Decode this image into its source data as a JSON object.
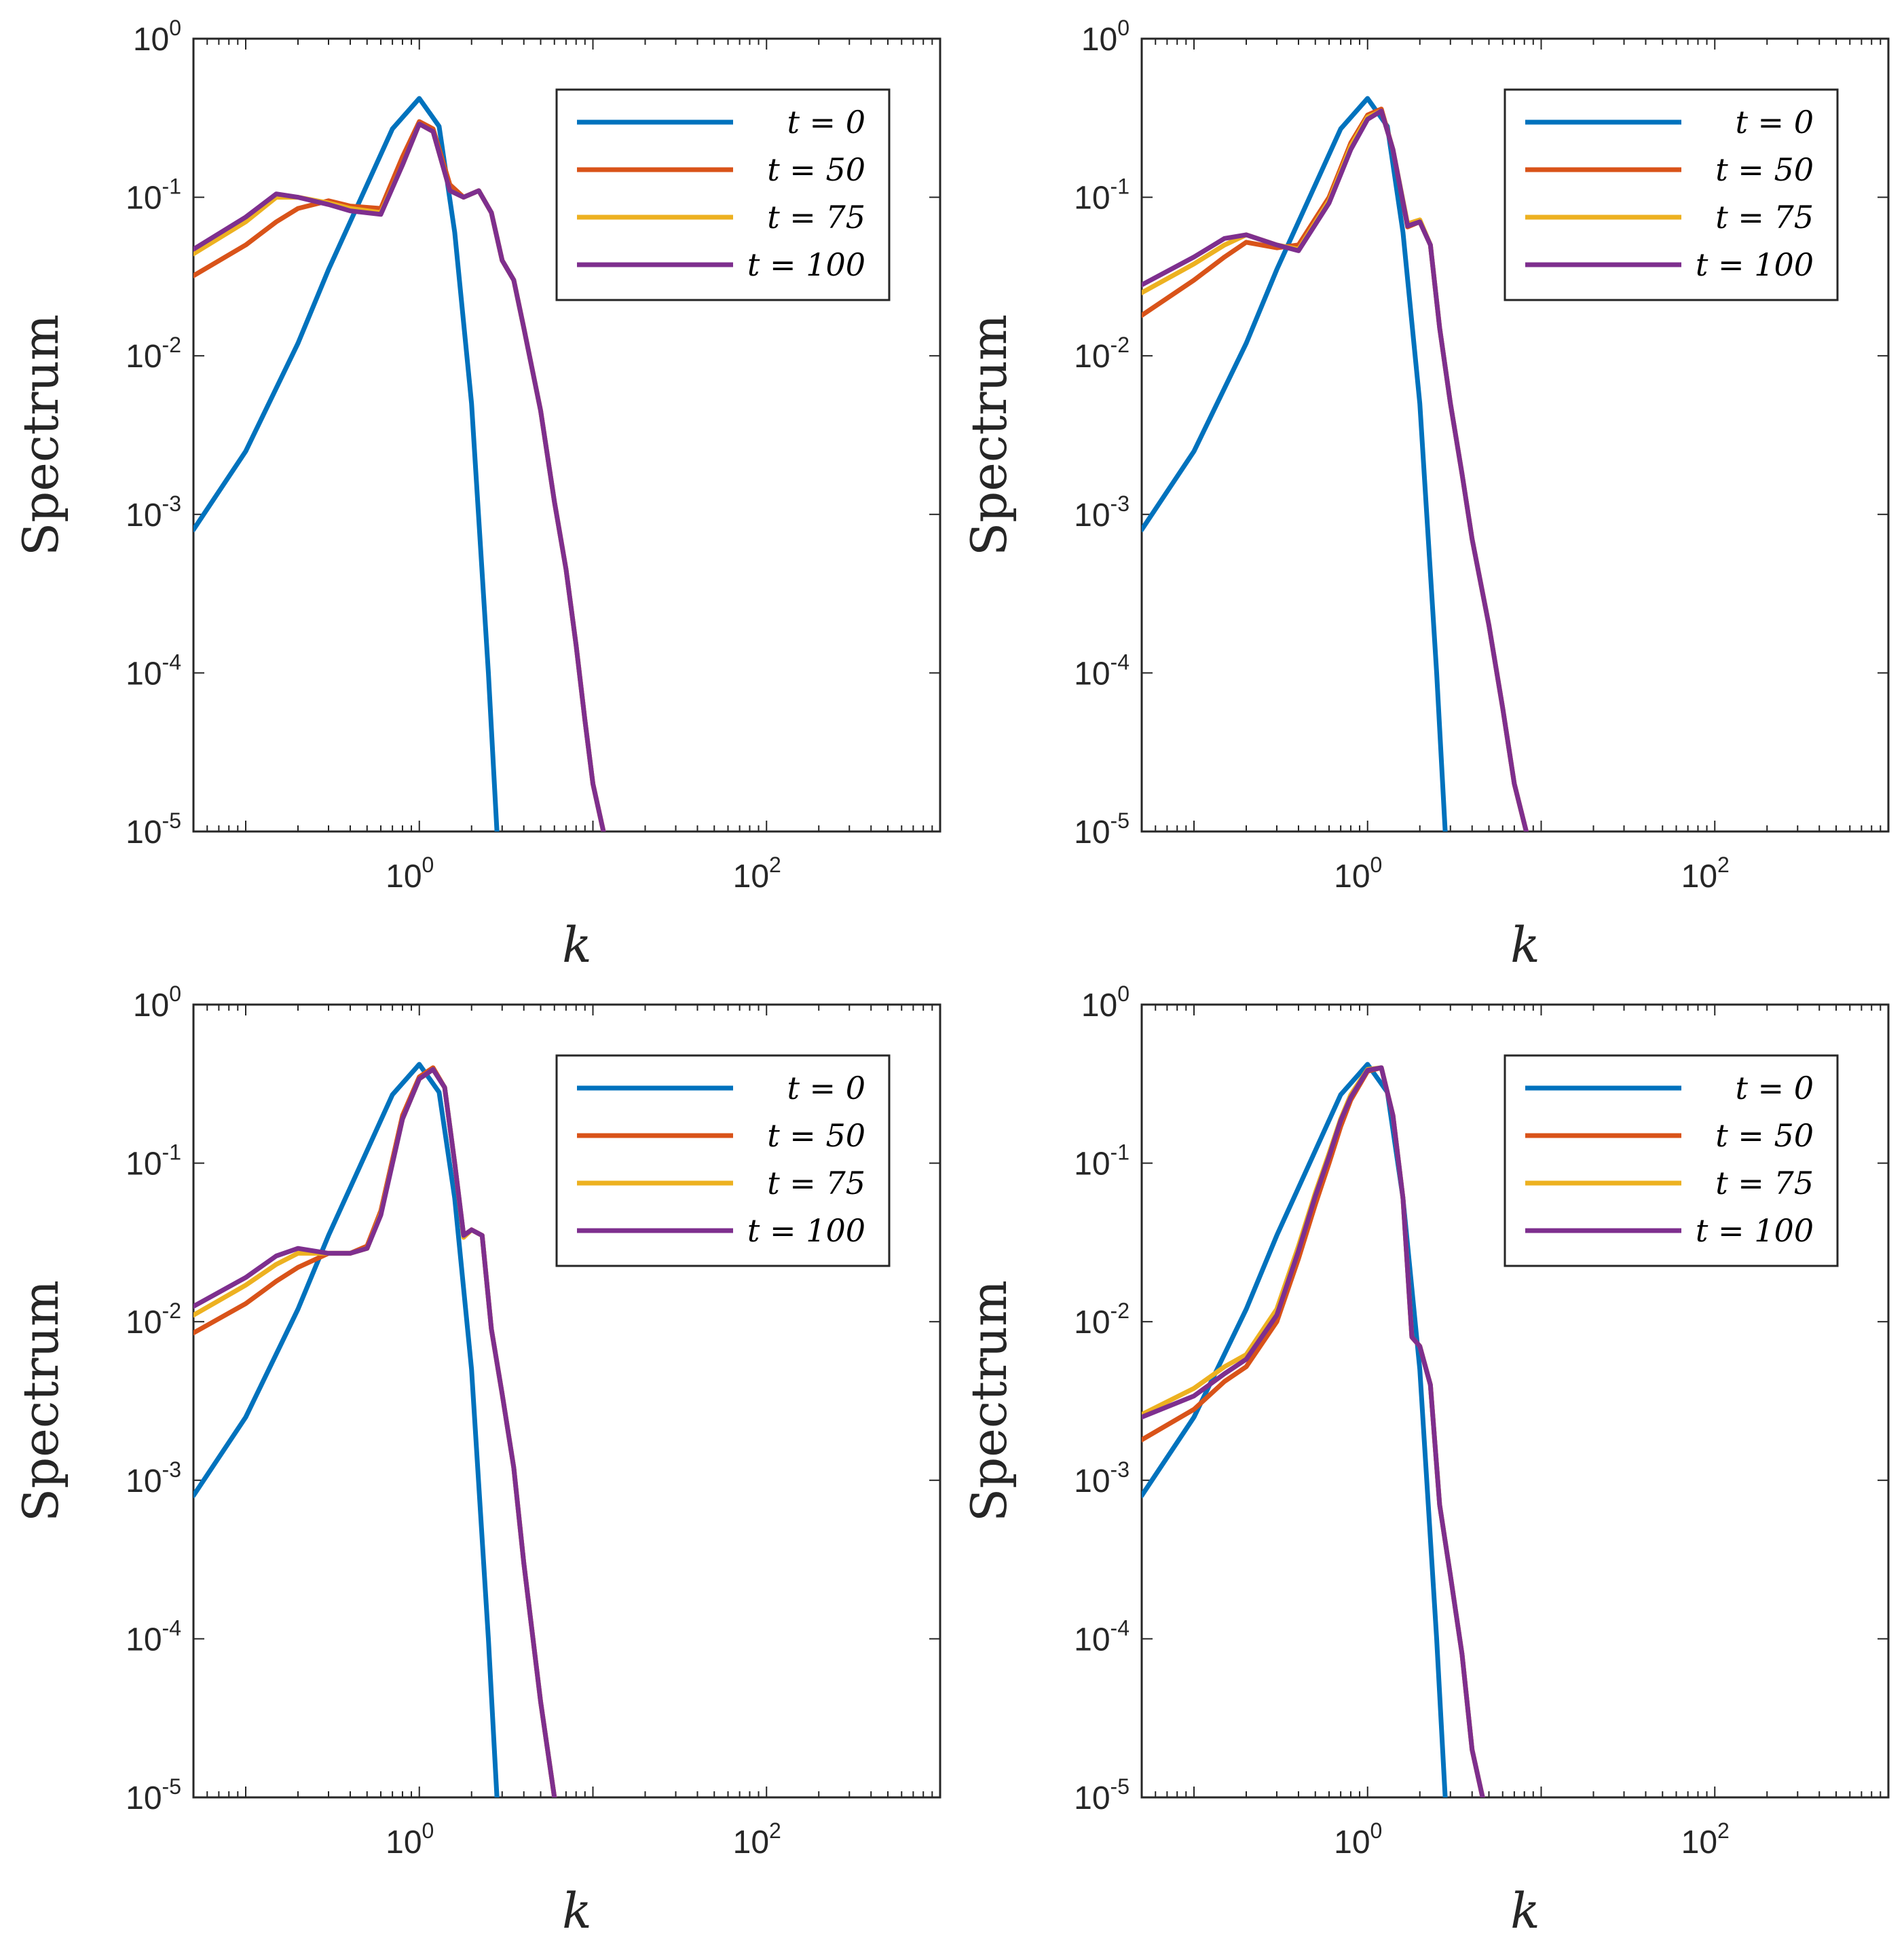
{
  "figure": {
    "title": ""
  },
  "colors": {
    "t0": "#0072BD",
    "t50": "#D95319",
    "t75": "#EDB120",
    "t100": "#7E2F8E",
    "axis": "#262626"
  },
  "chart_data": [
    {
      "type": "line",
      "panel": "top-left",
      "xscale": "log",
      "yscale": "log",
      "xlim": [
        0.05,
        1000
      ],
      "ylim": [
        1e-05,
        1
      ],
      "xticklabels": [
        {
          "base": "10",
          "exp": "0"
        },
        {
          "base": "10",
          "exp": "2"
        }
      ],
      "yticklabels": [
        {
          "base": "10",
          "exp": "0"
        },
        {
          "base": "10",
          "exp": "-1"
        },
        {
          "base": "10",
          "exp": "-2"
        },
        {
          "base": "10",
          "exp": "-3"
        },
        {
          "base": "10",
          "exp": "-4"
        },
        {
          "base": "10",
          "exp": "-5"
        }
      ],
      "xlabel": "k",
      "ylabel": "Spectrum",
      "legend_position": "top-right",
      "series": [
        {
          "name": "t = 0",
          "label": "t = 0",
          "color_key": "t0",
          "x": [
            0.05,
            0.1,
            0.2,
            0.3,
            0.5,
            0.7,
            1.0,
            1.3,
            1.6,
            2.0,
            2.5,
            2.8
          ],
          "y": [
            0.0008,
            0.0025,
            0.012,
            0.035,
            0.12,
            0.27,
            0.42,
            0.28,
            0.06,
            0.005,
            0.0001,
            1e-05
          ]
        },
        {
          "name": "t = 50",
          "label": "t = 50",
          "color_key": "t50",
          "x": [
            0.05,
            0.1,
            0.15,
            0.2,
            0.3,
            0.4,
            0.6,
            0.8,
            1.0,
            1.2,
            1.5,
            1.8,
            2.2,
            2.6,
            3.0,
            3.5,
            4.0,
            5.0,
            6.0,
            7.0,
            8.0,
            9.0,
            10.0,
            11.5
          ],
          "y": [
            0.032,
            0.05,
            0.07,
            0.085,
            0.095,
            0.088,
            0.085,
            0.18,
            0.3,
            0.27,
            0.12,
            0.1,
            0.11,
            0.08,
            0.04,
            0.03,
            0.015,
            0.0045,
            0.0012,
            0.00045,
            0.00015,
            5e-05,
            2e-05,
            1e-05
          ]
        },
        {
          "name": "t = 75",
          "label": "t = 75",
          "color_key": "t75",
          "x": [
            0.05,
            0.1,
            0.15,
            0.2,
            0.3,
            0.4,
            0.6,
            0.8,
            1.0,
            1.2,
            1.5,
            1.8,
            2.2,
            2.6,
            3.0,
            3.5,
            4.0,
            5.0,
            6.0,
            7.0,
            8.0,
            9.0,
            10.0,
            11.5
          ],
          "y": [
            0.044,
            0.07,
            0.1,
            0.1,
            0.092,
            0.085,
            0.08,
            0.16,
            0.29,
            0.26,
            0.11,
            0.1,
            0.11,
            0.08,
            0.04,
            0.03,
            0.015,
            0.0045,
            0.0012,
            0.00045,
            0.00015,
            5e-05,
            2e-05,
            1e-05
          ]
        },
        {
          "name": "t = 100",
          "label": "t = 100",
          "color_key": "t100",
          "x": [
            0.05,
            0.1,
            0.15,
            0.2,
            0.3,
            0.4,
            0.6,
            0.8,
            1.0,
            1.2,
            1.5,
            1.8,
            2.2,
            2.6,
            3.0,
            3.5,
            4.0,
            5.0,
            6.0,
            7.0,
            8.0,
            9.0,
            10.0,
            11.5
          ],
          "y": [
            0.047,
            0.075,
            0.105,
            0.1,
            0.09,
            0.082,
            0.078,
            0.16,
            0.29,
            0.26,
            0.11,
            0.1,
            0.11,
            0.08,
            0.04,
            0.03,
            0.015,
            0.0045,
            0.0012,
            0.00045,
            0.00015,
            5e-05,
            2e-05,
            1e-05
          ]
        }
      ]
    },
    {
      "type": "line",
      "panel": "top-right",
      "xscale": "log",
      "yscale": "log",
      "xlim": [
        0.05,
        1000
      ],
      "ylim": [
        1e-05,
        1
      ],
      "xticklabels": [
        {
          "base": "10",
          "exp": "0"
        },
        {
          "base": "10",
          "exp": "2"
        }
      ],
      "yticklabels": [
        {
          "base": "10",
          "exp": "0"
        },
        {
          "base": "10",
          "exp": "-1"
        },
        {
          "base": "10",
          "exp": "-2"
        },
        {
          "base": "10",
          "exp": "-3"
        },
        {
          "base": "10",
          "exp": "-4"
        },
        {
          "base": "10",
          "exp": "-5"
        }
      ],
      "xlabel": "k",
      "ylabel": "Spectrum",
      "legend_position": "top-right",
      "series": [
        {
          "name": "t = 0",
          "label": "t = 0",
          "color_key": "t0",
          "x": [
            0.05,
            0.1,
            0.2,
            0.3,
            0.5,
            0.7,
            1.0,
            1.3,
            1.6,
            2.0,
            2.5,
            2.8
          ],
          "y": [
            0.0008,
            0.0025,
            0.012,
            0.035,
            0.12,
            0.27,
            0.42,
            0.28,
            0.06,
            0.005,
            0.0001,
            1e-05
          ]
        },
        {
          "name": "t = 50",
          "label": "t = 50",
          "color_key": "t50",
          "x": [
            0.05,
            0.1,
            0.15,
            0.2,
            0.3,
            0.4,
            0.6,
            0.8,
            1.0,
            1.2,
            1.4,
            1.7,
            2.0,
            2.3,
            2.6,
            3.0,
            3.5,
            4.0,
            5.0,
            6.0,
            7.0,
            8.2
          ],
          "y": [
            0.018,
            0.03,
            0.042,
            0.052,
            0.048,
            0.05,
            0.1,
            0.22,
            0.33,
            0.36,
            0.2,
            0.065,
            0.07,
            0.05,
            0.015,
            0.005,
            0.0018,
            0.0007,
            0.0002,
            6e-05,
            2e-05,
            1e-05
          ]
        },
        {
          "name": "t = 75",
          "label": "t = 75",
          "color_key": "t75",
          "x": [
            0.05,
            0.1,
            0.15,
            0.2,
            0.3,
            0.4,
            0.6,
            0.8,
            1.0,
            1.2,
            1.4,
            1.7,
            2.0,
            2.3,
            2.6,
            3.0,
            3.5,
            4.0,
            5.0,
            6.0,
            7.0,
            8.2
          ],
          "y": [
            0.025,
            0.038,
            0.05,
            0.058,
            0.05,
            0.047,
            0.095,
            0.21,
            0.32,
            0.35,
            0.2,
            0.068,
            0.072,
            0.05,
            0.015,
            0.005,
            0.0018,
            0.0007,
            0.0002,
            6e-05,
            2e-05,
            1e-05
          ]
        },
        {
          "name": "t = 100",
          "label": "t = 100",
          "color_key": "t100",
          "x": [
            0.05,
            0.1,
            0.15,
            0.2,
            0.3,
            0.4,
            0.6,
            0.8,
            1.0,
            1.2,
            1.4,
            1.7,
            2.0,
            2.3,
            2.6,
            3.0,
            3.5,
            4.0,
            5.0,
            6.0,
            7.0,
            8.2
          ],
          "y": [
            0.028,
            0.042,
            0.055,
            0.058,
            0.05,
            0.046,
            0.092,
            0.2,
            0.31,
            0.35,
            0.2,
            0.066,
            0.07,
            0.05,
            0.015,
            0.005,
            0.0018,
            0.0007,
            0.0002,
            6e-05,
            2e-05,
            1e-05
          ]
        }
      ]
    },
    {
      "type": "line",
      "panel": "bottom-left",
      "xscale": "log",
      "yscale": "log",
      "xlim": [
        0.05,
        1000
      ],
      "ylim": [
        1e-05,
        1
      ],
      "xticklabels": [
        {
          "base": "10",
          "exp": "0"
        },
        {
          "base": "10",
          "exp": "2"
        }
      ],
      "yticklabels": [
        {
          "base": "10",
          "exp": "0"
        },
        {
          "base": "10",
          "exp": "-1"
        },
        {
          "base": "10",
          "exp": "-2"
        },
        {
          "base": "10",
          "exp": "-3"
        },
        {
          "base": "10",
          "exp": "-4"
        },
        {
          "base": "10",
          "exp": "-5"
        }
      ],
      "xlabel": "k",
      "ylabel": "Spectrum",
      "legend_position": "top-right",
      "series": [
        {
          "name": "t = 0",
          "label": "t = 0",
          "color_key": "t0",
          "x": [
            0.05,
            0.1,
            0.2,
            0.3,
            0.5,
            0.7,
            1.0,
            1.3,
            1.6,
            2.0,
            2.5,
            2.8
          ],
          "y": [
            0.0008,
            0.0025,
            0.012,
            0.035,
            0.12,
            0.27,
            0.42,
            0.28,
            0.06,
            0.005,
            0.0001,
            1e-05
          ]
        },
        {
          "name": "t = 50",
          "label": "t = 50",
          "color_key": "t50",
          "x": [
            0.05,
            0.1,
            0.15,
            0.2,
            0.3,
            0.4,
            0.5,
            0.6,
            0.8,
            1.0,
            1.2,
            1.4,
            1.6,
            1.8,
            2.0,
            2.3,
            2.6,
            3.0,
            3.5,
            4.0,
            5.0,
            6.0
          ],
          "y": [
            0.0085,
            0.013,
            0.018,
            0.022,
            0.027,
            0.027,
            0.03,
            0.05,
            0.2,
            0.35,
            0.4,
            0.3,
            0.1,
            0.035,
            0.038,
            0.035,
            0.009,
            0.0035,
            0.0012,
            0.0003,
            4e-05,
            1e-05
          ]
        },
        {
          "name": "t = 75",
          "label": "t = 75",
          "color_key": "t75",
          "x": [
            0.05,
            0.1,
            0.15,
            0.2,
            0.3,
            0.4,
            0.5,
            0.6,
            0.8,
            1.0,
            1.2,
            1.4,
            1.6,
            1.8,
            2.0,
            2.3,
            2.6,
            3.0,
            3.5,
            4.0,
            5.0,
            6.0
          ],
          "y": [
            0.011,
            0.017,
            0.023,
            0.027,
            0.027,
            0.027,
            0.029,
            0.048,
            0.19,
            0.34,
            0.39,
            0.3,
            0.1,
            0.034,
            0.038,
            0.035,
            0.009,
            0.0035,
            0.0012,
            0.0003,
            4e-05,
            1e-05
          ]
        },
        {
          "name": "t = 100",
          "label": "t = 100",
          "color_key": "t100",
          "x": [
            0.05,
            0.1,
            0.15,
            0.2,
            0.3,
            0.4,
            0.5,
            0.6,
            0.8,
            1.0,
            1.2,
            1.4,
            1.6,
            1.8,
            2.0,
            2.3,
            2.6,
            3.0,
            3.5,
            4.0,
            5.0,
            6.0
          ],
          "y": [
            0.0125,
            0.019,
            0.026,
            0.029,
            0.027,
            0.027,
            0.029,
            0.047,
            0.19,
            0.34,
            0.39,
            0.3,
            0.1,
            0.035,
            0.038,
            0.035,
            0.009,
            0.0035,
            0.0012,
            0.0003,
            4e-05,
            1e-05
          ]
        }
      ]
    },
    {
      "type": "line",
      "panel": "bottom-right",
      "xscale": "log",
      "yscale": "log",
      "xlim": [
        0.05,
        1000
      ],
      "ylim": [
        1e-05,
        1
      ],
      "xticklabels": [
        {
          "base": "10",
          "exp": "0"
        },
        {
          "base": "10",
          "exp": "2"
        }
      ],
      "yticklabels": [
        {
          "base": "10",
          "exp": "0"
        },
        {
          "base": "10",
          "exp": "-1"
        },
        {
          "base": "10",
          "exp": "-2"
        },
        {
          "base": "10",
          "exp": "-3"
        },
        {
          "base": "10",
          "exp": "-4"
        },
        {
          "base": "10",
          "exp": "-5"
        }
      ],
      "xlabel": "k",
      "ylabel": "Spectrum",
      "legend_position": "top-right",
      "series": [
        {
          "name": "t = 0",
          "label": "t = 0",
          "color_key": "t0",
          "x": [
            0.05,
            0.1,
            0.2,
            0.3,
            0.5,
            0.7,
            1.0,
            1.3,
            1.6,
            2.0,
            2.5,
            2.8
          ],
          "y": [
            0.0008,
            0.0025,
            0.012,
            0.035,
            0.12,
            0.27,
            0.42,
            0.28,
            0.06,
            0.005,
            0.0001,
            1e-05
          ]
        },
        {
          "name": "t = 50",
          "label": "t = 50",
          "color_key": "t50",
          "x": [
            0.05,
            0.1,
            0.15,
            0.2,
            0.3,
            0.4,
            0.5,
            0.6,
            0.7,
            0.8,
            1.0,
            1.2,
            1.4,
            1.6,
            1.8,
            2.0,
            2.3,
            2.6,
            3.0,
            3.5,
            4.0,
            4.6
          ],
          "y": [
            0.0018,
            0.0028,
            0.0042,
            0.0052,
            0.01,
            0.025,
            0.055,
            0.1,
            0.17,
            0.25,
            0.38,
            0.4,
            0.2,
            0.06,
            0.008,
            0.007,
            0.004,
            0.0007,
            0.00025,
            8e-05,
            2e-05,
            1e-05
          ]
        },
        {
          "name": "t = 75",
          "label": "t = 75",
          "color_key": "t75",
          "x": [
            0.05,
            0.1,
            0.15,
            0.2,
            0.3,
            0.4,
            0.5,
            0.6,
            0.7,
            0.8,
            1.0,
            1.2,
            1.4,
            1.6,
            1.8,
            2.0,
            2.3,
            2.6,
            3.0,
            3.5,
            4.0,
            4.6
          ],
          "y": [
            0.0026,
            0.0038,
            0.0052,
            0.0062,
            0.012,
            0.03,
            0.065,
            0.115,
            0.19,
            0.27,
            0.39,
            0.4,
            0.2,
            0.06,
            0.008,
            0.007,
            0.004,
            0.0007,
            0.00025,
            8e-05,
            2e-05,
            1e-05
          ]
        },
        {
          "name": "t = 100",
          "label": "t = 100",
          "color_key": "t100",
          "x": [
            0.05,
            0.1,
            0.15,
            0.2,
            0.3,
            0.4,
            0.5,
            0.6,
            0.7,
            0.8,
            1.0,
            1.2,
            1.4,
            1.6,
            1.8,
            2.0,
            2.3,
            2.6,
            3.0,
            3.5,
            4.0,
            4.6
          ],
          "y": [
            0.0025,
            0.0034,
            0.0047,
            0.0058,
            0.011,
            0.028,
            0.062,
            0.11,
            0.185,
            0.26,
            0.385,
            0.4,
            0.2,
            0.06,
            0.008,
            0.007,
            0.004,
            0.0007,
            0.00025,
            8e-05,
            2e-05,
            1e-05
          ]
        }
      ]
    }
  ]
}
